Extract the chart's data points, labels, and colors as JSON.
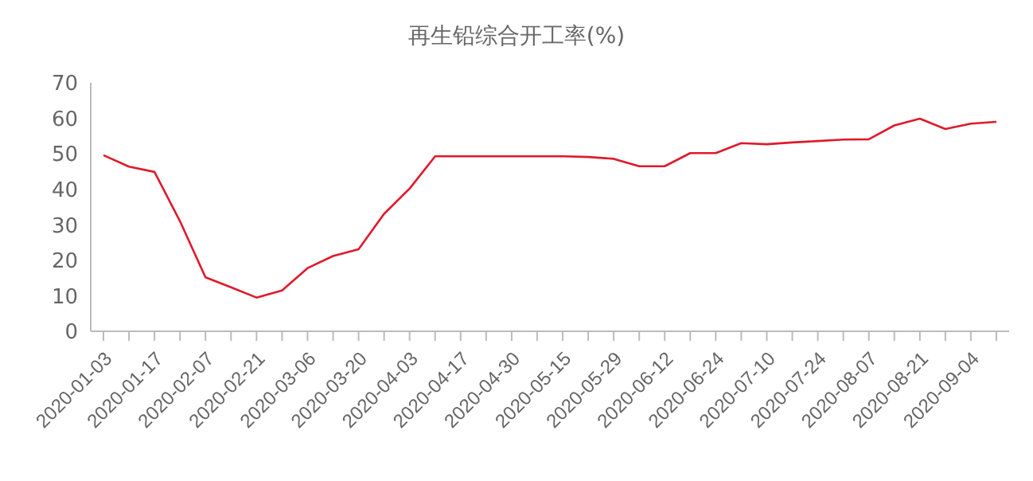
{
  "chart_data": {
    "type": "line",
    "title": "再生铅综合开工率(%)",
    "categories": [
      "2020-01-03",
      null,
      "2020-01-17",
      null,
      "2020-02-07",
      null,
      "2020-02-21",
      null,
      "2020-03-06",
      null,
      "2020-03-20",
      null,
      "2020-04-03",
      null,
      "2020-04-17",
      null,
      "2020-04-30",
      null,
      "2020-05-15",
      null,
      "2020-05-29",
      null,
      "2020-06-12",
      null,
      "2020-06-24",
      null,
      "2020-07-10",
      null,
      "2020-07-24",
      null,
      "2020-08-07",
      null,
      "2020-08-21",
      null,
      "2020-09-04",
      null
    ],
    "series": [
      {
        "color": "#e0192b",
        "values": [
          49.6,
          46.4,
          44.9,
          31,
          15.2,
          12.4,
          9.5,
          11.5,
          17.8,
          21.2,
          23.1,
          33.1,
          40.2,
          49.3,
          49.3,
          49.3,
          49.3,
          49.3,
          49.3,
          49.1,
          48.6,
          46.5,
          46.5,
          50.2,
          50.2,
          53,
          52.7,
          53.2,
          53.6,
          54,
          54.1,
          58,
          59.9,
          57,
          58.5,
          59
        ]
      }
    ],
    "ylim": [
      0,
      70
    ],
    "yticks": [
      0,
      10,
      20,
      30,
      40,
      50,
      60,
      70
    ],
    "grid": false,
    "legend": false,
    "marker": "none",
    "line_style": "solid"
  }
}
